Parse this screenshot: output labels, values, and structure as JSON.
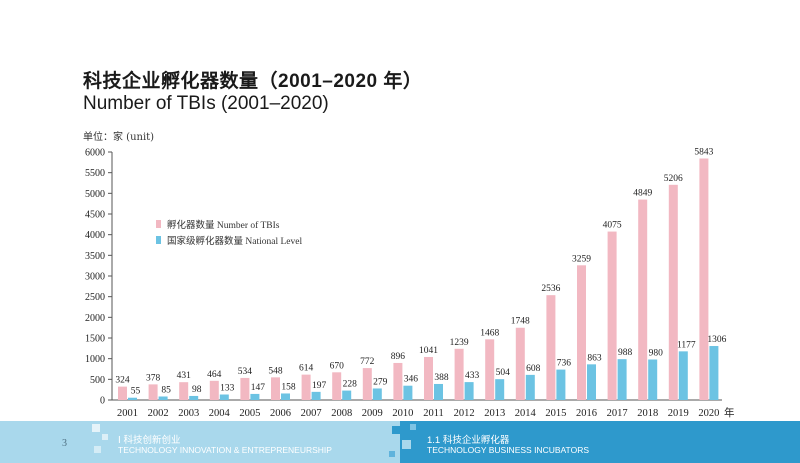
{
  "page": {
    "title_zh": "科技企业孵化器数量（2001–2020 年）",
    "title_en": "Number of TBIs (2001–2020)",
    "unit_label": "单位：家 (unit)",
    "page_number": "3",
    "footer_left_zh": "Ⅰ 科技创新创业",
    "footer_left_en": "TECHNOLOGY INNOVATION & ENTREPRENEURSHIP",
    "footer_right_zh": "1.1 科技企业孵化器",
    "footer_right_en": "TECHNOLOGY BUSINESS INCUBATORS"
  },
  "colors": {
    "series_total": "#f2b8c2",
    "series_national": "#6cc3e3",
    "footer_light": "#a9d8ec",
    "footer_dark": "#2e99cc",
    "axis": "#555555"
  },
  "chart_data": {
    "type": "bar",
    "x_unit_label": "年",
    "categories": [
      "2001",
      "2002",
      "2003",
      "2004",
      "2005",
      "2006",
      "2007",
      "2008",
      "2009",
      "2010",
      "2011",
      "2012",
      "2013",
      "2014",
      "2015",
      "2016",
      "2017",
      "2018",
      "2019",
      "2020"
    ],
    "series": [
      {
        "name": "孵化器数量 Number of TBIs",
        "values": [
          324,
          378,
          431,
          464,
          534,
          548,
          614,
          670,
          772,
          896,
          1041,
          1239,
          1468,
          1748,
          2536,
          3259,
          4075,
          4849,
          5206,
          5843
        ]
      },
      {
        "name": "国家级孵化器数量 National Level",
        "values": [
          55,
          85,
          98,
          133,
          147,
          158,
          197,
          228,
          279,
          346,
          388,
          433,
          504,
          608,
          736,
          863,
          988,
          980,
          1177,
          1306
        ]
      }
    ],
    "yticks": [
      0,
      500,
      1000,
      1500,
      2000,
      2500,
      3000,
      3500,
      4000,
      4500,
      5000,
      5500,
      6000
    ],
    "ylim": [
      0,
      6000
    ],
    "legend_position": "upper-left",
    "grid": false
  }
}
